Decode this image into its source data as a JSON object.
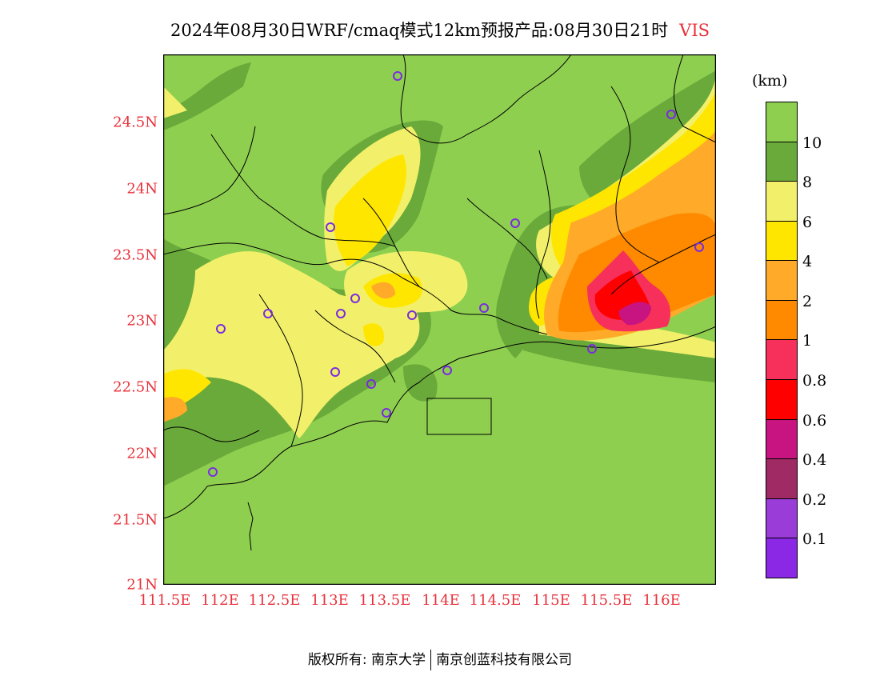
{
  "title": {
    "text": "2024年08月30日WRF/cmaq模式12km预报产品:08月30日21时",
    "variable": "VIS"
  },
  "axes": {
    "y_labels": [
      "24.5N",
      "24N",
      "23.5N",
      "23N",
      "22.5N",
      "22N",
      "21.5N",
      "21N"
    ],
    "x_labels": [
      "111.5E",
      "112E",
      "112.5E",
      "113E",
      "113.5E",
      "114E",
      "114.5E",
      "115E",
      "115.5E",
      "116E"
    ]
  },
  "legend": {
    "unit": "(km)",
    "levels": [
      "10",
      "8",
      "6",
      "4",
      "2",
      "1",
      "0.8",
      "0.6",
      "0.4",
      "0.2",
      "0.1"
    ],
    "colors": [
      "#8fcf50",
      "#6aaa3a",
      "#f2f06a",
      "#ffe600",
      "#ffaa28",
      "#ff8a00",
      "#f6305a",
      "#ff0000",
      "#c81480",
      "#a02a64",
      "#9a3cd8",
      "#8a28e6"
    ]
  },
  "footer": {
    "left": "版权所有: 南京大学",
    "right": "南京创蓝科技有限公司"
  }
}
